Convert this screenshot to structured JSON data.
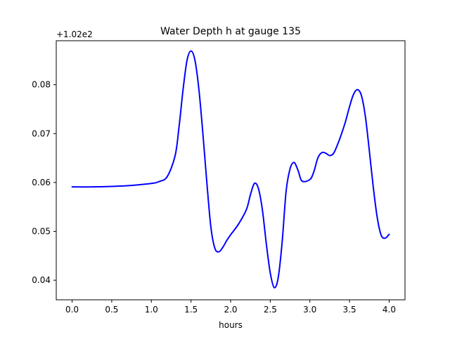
{
  "chart_data": {
    "type": "line",
    "title": "Water Depth h at gauge 135",
    "xlabel": "hours",
    "ylabel": "",
    "offset_label": "+1.02e2",
    "xlim": [
      -0.2,
      4.2
    ],
    "ylim": [
      0.036,
      0.089
    ],
    "xticks": [
      0.0,
      0.5,
      1.0,
      1.5,
      2.0,
      2.5,
      3.0,
      3.5,
      4.0
    ],
    "xtick_labels": [
      "0.0",
      "0.5",
      "1.0",
      "1.5",
      "2.0",
      "2.5",
      "3.0",
      "3.5",
      "4.0"
    ],
    "yticks": [
      0.04,
      0.05,
      0.06,
      0.07,
      0.08
    ],
    "ytick_labels": [
      "0.04",
      "0.05",
      "0.06",
      "0.07",
      "0.08"
    ],
    "grid": false,
    "legend": "none",
    "series": [
      {
        "color": "#0000ff",
        "x": [
          0.0,
          0.25,
          0.5,
          0.75,
          1.0,
          1.1,
          1.2,
          1.3,
          1.35,
          1.4,
          1.45,
          1.5,
          1.55,
          1.6,
          1.65,
          1.7,
          1.75,
          1.8,
          1.85,
          1.9,
          1.95,
          2.0,
          2.1,
          2.2,
          2.25,
          2.3,
          2.35,
          2.4,
          2.45,
          2.5,
          2.55,
          2.6,
          2.65,
          2.7,
          2.75,
          2.8,
          2.85,
          2.9,
          3.0,
          3.05,
          3.1,
          3.15,
          3.2,
          3.25,
          3.3,
          3.35,
          3.4,
          3.45,
          3.5,
          3.55,
          3.6,
          3.65,
          3.7,
          3.75,
          3.8,
          3.85,
          3.9,
          3.95,
          4.0
        ],
        "y": [
          0.0591,
          0.0591,
          0.0592,
          0.0594,
          0.0598,
          0.0602,
          0.0612,
          0.0655,
          0.0715,
          0.079,
          0.085,
          0.0869,
          0.085,
          0.079,
          0.07,
          0.06,
          0.051,
          0.0466,
          0.0458,
          0.0467,
          0.0481,
          0.0493,
          0.0515,
          0.0545,
          0.0575,
          0.0598,
          0.0588,
          0.0545,
          0.0475,
          0.0415,
          0.0385,
          0.0405,
          0.0478,
          0.0582,
          0.0628,
          0.0641,
          0.0625,
          0.0603,
          0.0606,
          0.0622,
          0.065,
          0.0661,
          0.066,
          0.0655,
          0.066,
          0.0678,
          0.07,
          0.0725,
          0.0755,
          0.078,
          0.079,
          0.0778,
          0.0735,
          0.0665,
          0.059,
          0.0528,
          0.0492,
          0.0486,
          0.0494
        ]
      }
    ]
  }
}
